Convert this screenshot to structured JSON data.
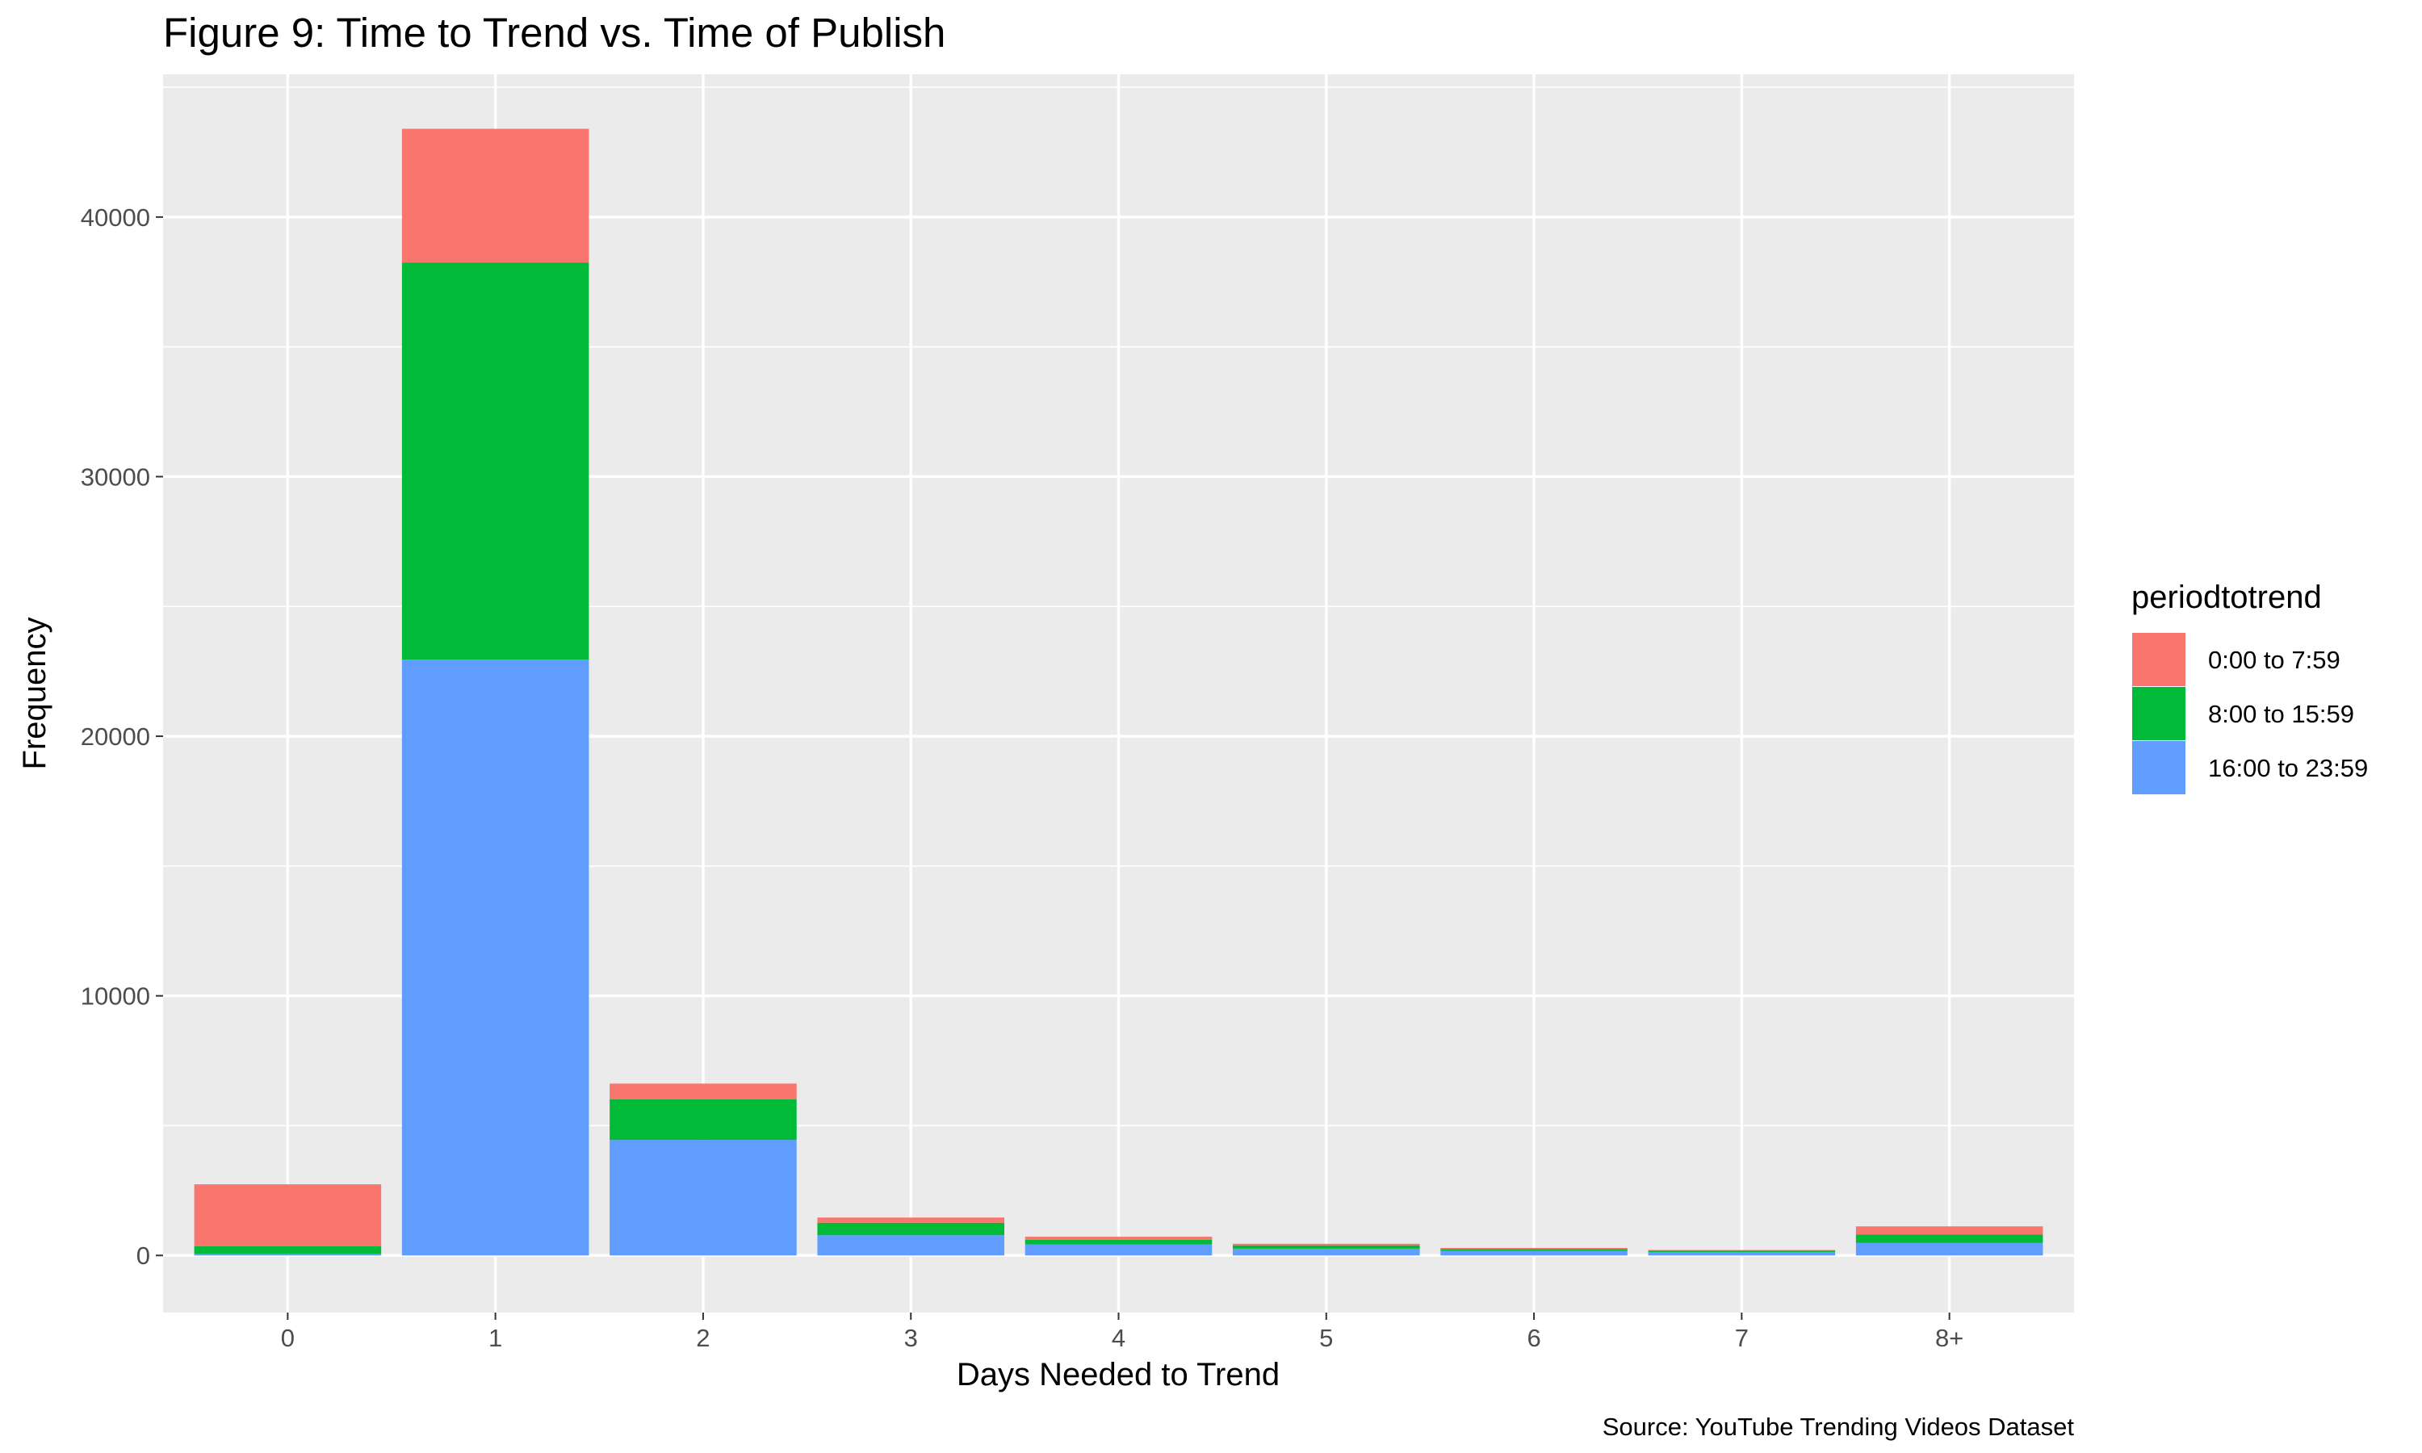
{
  "chart_data": {
    "type": "bar",
    "stacked": true,
    "title": "Figure 9: Time to Trend vs. Time of Publish",
    "xlabel": "Days Needed to Trend",
    "ylabel": "Frequency",
    "caption": "Source: YouTube Trending Videos Dataset",
    "categories": [
      "0",
      "1",
      "2",
      "3",
      "4",
      "5",
      "6",
      "7",
      "8+"
    ],
    "ylim": [
      -2200,
      45500
    ],
    "yticks": [
      0,
      10000,
      20000,
      30000,
      40000
    ],
    "yticks_labels": [
      "0",
      "10000",
      "20000",
      "30000",
      "40000"
    ],
    "grid": true,
    "legend": {
      "title": "periodtotrend",
      "placement": "right"
    },
    "series": [
      {
        "name": "16:00 to 23:59",
        "color": "#619CFF",
        "values": [
          60,
          22950,
          4450,
          780,
          420,
          260,
          180,
          130,
          480
        ]
      },
      {
        "name": "8:00 to 15:59",
        "color": "#00BA38",
        "values": [
          300,
          15300,
          1570,
          480,
          180,
          130,
          70,
          50,
          330
        ]
      },
      {
        "name": "0:00 to 7:59",
        "color": "#F8766D",
        "values": [
          2380,
          5150,
          600,
          200,
          120,
          60,
          40,
          30,
          310
        ]
      }
    ],
    "legend_order": [
      "0:00 to 7:59",
      "8:00 to 15:59",
      "16:00 to 23:59"
    ]
  },
  "colors": {
    "panel": "#EBEBEB",
    "grid": "#FFFFFF",
    "tick": "#333333"
  }
}
